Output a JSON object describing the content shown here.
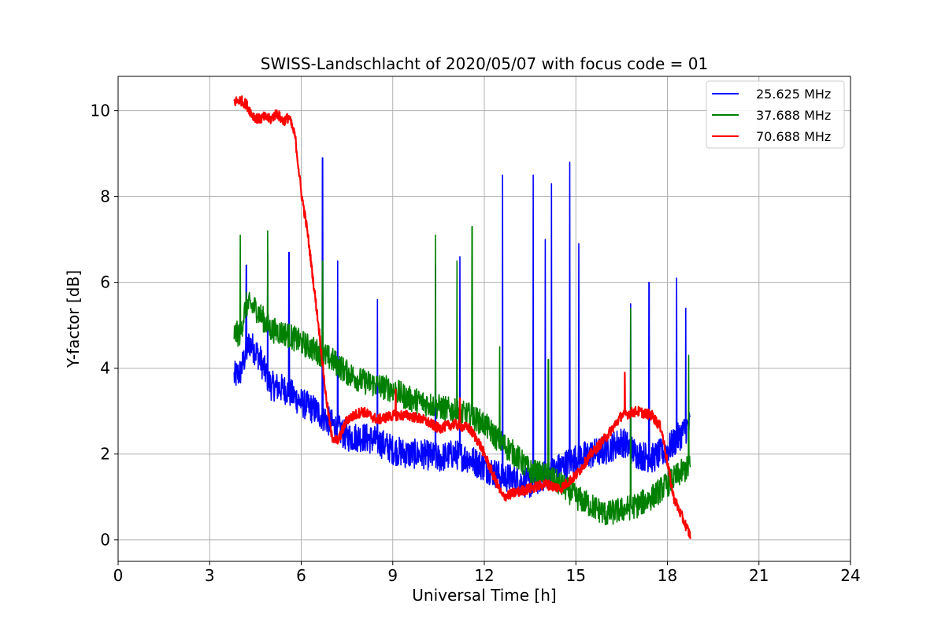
{
  "chart_data": {
    "type": "line",
    "title": "SWISS-Landschlacht of 2020/05/07 with focus code = 01",
    "xlabel": "Universal Time [h]",
    "ylabel": "Y-factor [dB]",
    "xlim": [
      0,
      24
    ],
    "ylim": [
      -0.5,
      10.8
    ],
    "xticks": [
      0,
      3,
      6,
      9,
      12,
      15,
      18,
      21,
      24
    ],
    "yticks": [
      0,
      2,
      4,
      6,
      8,
      10
    ],
    "grid": true,
    "legend_position": "top-right",
    "series": [
      {
        "name": "25.625 MHz",
        "color": "#0000ff",
        "points": [
          [
            3.8,
            3.8
          ],
          [
            4.0,
            3.9
          ],
          [
            4.3,
            4.6
          ],
          [
            4.6,
            4.3
          ],
          [
            5.0,
            3.6
          ],
          [
            5.5,
            3.5
          ],
          [
            6.0,
            3.2
          ],
          [
            6.5,
            3.0
          ],
          [
            7.0,
            2.7
          ],
          [
            7.5,
            2.4
          ],
          [
            8.0,
            2.4
          ],
          [
            8.5,
            2.3
          ],
          [
            9.0,
            2.1
          ],
          [
            9.5,
            2.0
          ],
          [
            10.0,
            2.0
          ],
          [
            10.5,
            1.9
          ],
          [
            11.0,
            2.0
          ],
          [
            11.5,
            1.9
          ],
          [
            12.0,
            1.7
          ],
          [
            12.5,
            1.5
          ],
          [
            13.0,
            1.4
          ],
          [
            13.5,
            1.3
          ],
          [
            14.0,
            1.5
          ],
          [
            14.5,
            1.7
          ],
          [
            15.0,
            1.9
          ],
          [
            15.5,
            2.0
          ],
          [
            16.0,
            2.1
          ],
          [
            16.5,
            2.3
          ],
          [
            17.0,
            2.0
          ],
          [
            17.5,
            1.9
          ],
          [
            18.0,
            2.1
          ],
          [
            18.5,
            2.5
          ],
          [
            18.75,
            2.7
          ]
        ],
        "spikes": [
          [
            4.2,
            6.4
          ],
          [
            4.9,
            6.7
          ],
          [
            5.6,
            6.7
          ],
          [
            6.7,
            8.9
          ],
          [
            7.2,
            6.5
          ],
          [
            8.5,
            5.6
          ],
          [
            10.4,
            6.4
          ],
          [
            11.2,
            6.6
          ],
          [
            12.6,
            8.5
          ],
          [
            13.6,
            8.5
          ],
          [
            14.0,
            7.0
          ],
          [
            14.2,
            8.3
          ],
          [
            14.8,
            8.8
          ],
          [
            15.1,
            6.9
          ],
          [
            16.8,
            5.5
          ],
          [
            17.4,
            6.0
          ],
          [
            18.3,
            6.1
          ],
          [
            18.6,
            5.4
          ]
        ]
      },
      {
        "name": "37.688 MHz",
        "color": "#008000",
        "points": [
          [
            3.8,
            4.8
          ],
          [
            4.0,
            4.8
          ],
          [
            4.2,
            5.5
          ],
          [
            4.5,
            5.4
          ],
          [
            5.0,
            4.9
          ],
          [
            5.5,
            4.8
          ],
          [
            6.0,
            4.6
          ],
          [
            6.5,
            4.4
          ],
          [
            7.0,
            4.2
          ],
          [
            7.5,
            3.9
          ],
          [
            8.0,
            3.7
          ],
          [
            8.5,
            3.6
          ],
          [
            9.0,
            3.5
          ],
          [
            9.5,
            3.3
          ],
          [
            10.0,
            3.2
          ],
          [
            10.5,
            3.1
          ],
          [
            11.0,
            3.0
          ],
          [
            11.5,
            2.9
          ],
          [
            12.0,
            2.7
          ],
          [
            12.5,
            2.3
          ],
          [
            13.0,
            2.0
          ],
          [
            13.5,
            1.6
          ],
          [
            14.0,
            1.5
          ],
          [
            14.5,
            1.3
          ],
          [
            15.0,
            1.0
          ],
          [
            15.5,
            0.8
          ],
          [
            16.0,
            0.6
          ],
          [
            16.5,
            0.7
          ],
          [
            17.0,
            0.8
          ],
          [
            17.5,
            1.0
          ],
          [
            18.0,
            1.3
          ],
          [
            18.5,
            1.6
          ],
          [
            18.75,
            1.7
          ]
        ],
        "spikes": [
          [
            4.0,
            7.1
          ],
          [
            4.9,
            7.2
          ],
          [
            6.7,
            6.5
          ],
          [
            10.4,
            7.1
          ],
          [
            11.1,
            6.5
          ],
          [
            11.6,
            7.3
          ],
          [
            12.5,
            4.5
          ],
          [
            14.1,
            4.2
          ],
          [
            16.8,
            5.4
          ],
          [
            18.7,
            4.3
          ]
        ]
      },
      {
        "name": "70.688 MHz",
        "color": "#ff0000",
        "points": [
          [
            3.8,
            10.2
          ],
          [
            4.0,
            10.25
          ],
          [
            4.2,
            10.15
          ],
          [
            4.4,
            9.9
          ],
          [
            4.6,
            9.8
          ],
          [
            4.8,
            9.85
          ],
          [
            5.0,
            9.8
          ],
          [
            5.2,
            9.95
          ],
          [
            5.4,
            9.75
          ],
          [
            5.6,
            9.85
          ],
          [
            5.8,
            9.4
          ],
          [
            6.0,
            8.1
          ],
          [
            6.2,
            7.2
          ],
          [
            6.4,
            6.0
          ],
          [
            6.6,
            4.8
          ],
          [
            6.8,
            3.4
          ],
          [
            7.0,
            2.4
          ],
          [
            7.2,
            2.3
          ],
          [
            7.5,
            2.8
          ],
          [
            8.0,
            3.0
          ],
          [
            8.5,
            2.8
          ],
          [
            9.0,
            2.9
          ],
          [
            9.5,
            2.9
          ],
          [
            10.0,
            2.8
          ],
          [
            10.5,
            2.6
          ],
          [
            11.0,
            2.7
          ],
          [
            11.5,
            2.6
          ],
          [
            11.8,
            2.3
          ],
          [
            12.0,
            2.0
          ],
          [
            12.3,
            1.5
          ],
          [
            12.6,
            1.0
          ],
          [
            13.0,
            1.1
          ],
          [
            13.5,
            1.2
          ],
          [
            14.0,
            1.3
          ],
          [
            14.5,
            1.2
          ],
          [
            15.0,
            1.5
          ],
          [
            15.5,
            2.0
          ],
          [
            16.0,
            2.4
          ],
          [
            16.5,
            2.9
          ],
          [
            17.0,
            3.0
          ],
          [
            17.5,
            2.9
          ],
          [
            17.8,
            2.6
          ],
          [
            18.0,
            1.8
          ],
          [
            18.2,
            1.0
          ],
          [
            18.5,
            0.5
          ],
          [
            18.75,
            0.1
          ]
        ],
        "spikes": [
          [
            9.1,
            3.5
          ],
          [
            11.2,
            3.3
          ],
          [
            16.6,
            3.9
          ]
        ]
      }
    ]
  }
}
